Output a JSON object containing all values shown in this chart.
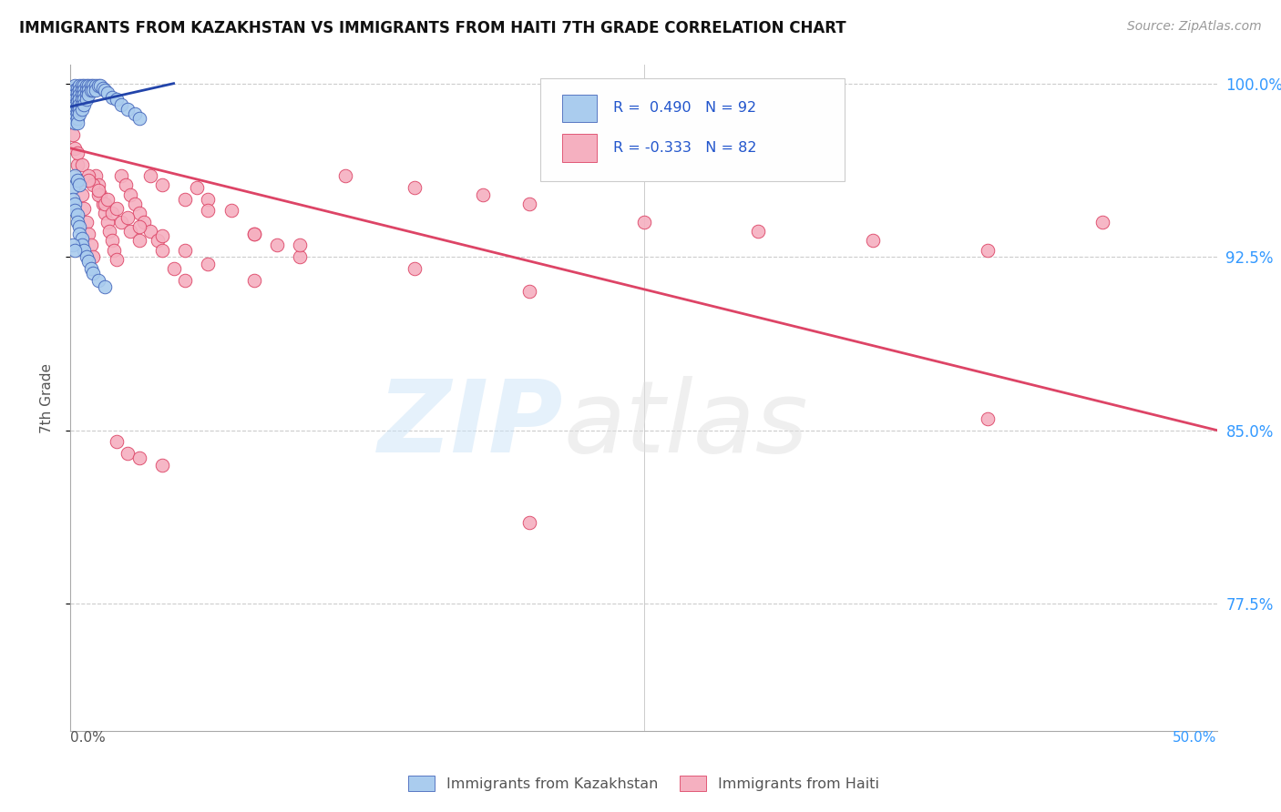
{
  "title": "IMMIGRANTS FROM KAZAKHSTAN VS IMMIGRANTS FROM HAITI 7TH GRADE CORRELATION CHART",
  "source": "Source: ZipAtlas.com",
  "ylabel": "7th Grade",
  "xlim": [
    0.0,
    0.5
  ],
  "ylim": [
    0.72,
    1.008
  ],
  "yticks": [
    0.775,
    0.85,
    0.925,
    1.0
  ],
  "ytick_labels": [
    "77.5%",
    "85.0%",
    "92.5%",
    "100.0%"
  ],
  "background_color": "#ffffff",
  "grid_color": "#cccccc",
  "kaz_color": "#aaccee",
  "haiti_color": "#f5b0c0",
  "kaz_edge_color": "#4466bb",
  "haiti_edge_color": "#dd4466",
  "kaz_line_color": "#2244aa",
  "haiti_line_color": "#dd4466",
  "legend_color": "#2255cc",
  "kaz_R": 0.49,
  "kaz_N": 92,
  "haiti_R": -0.333,
  "haiti_N": 82,
  "haiti_trend_x": [
    0.0,
    0.5
  ],
  "haiti_trend_y": [
    0.972,
    0.85
  ],
  "kaz_trend_x": [
    0.0,
    0.045
  ],
  "kaz_trend_y": [
    0.99,
    1.0
  ],
  "kaz_x": [
    0.001,
    0.001,
    0.001,
    0.001,
    0.001,
    0.001,
    0.001,
    0.001,
    0.001,
    0.002,
    0.002,
    0.002,
    0.002,
    0.002,
    0.002,
    0.002,
    0.002,
    0.002,
    0.002,
    0.003,
    0.003,
    0.003,
    0.003,
    0.003,
    0.003,
    0.003,
    0.003,
    0.003,
    0.004,
    0.004,
    0.004,
    0.004,
    0.004,
    0.004,
    0.004,
    0.005,
    0.005,
    0.005,
    0.005,
    0.005,
    0.005,
    0.006,
    0.006,
    0.006,
    0.006,
    0.006,
    0.007,
    0.007,
    0.007,
    0.007,
    0.008,
    0.008,
    0.008,
    0.009,
    0.009,
    0.01,
    0.01,
    0.011,
    0.011,
    0.012,
    0.013,
    0.014,
    0.015,
    0.016,
    0.018,
    0.02,
    0.022,
    0.025,
    0.028,
    0.03,
    0.001,
    0.001,
    0.002,
    0.002,
    0.003,
    0.003,
    0.004,
    0.004,
    0.005,
    0.005,
    0.006,
    0.007,
    0.008,
    0.009,
    0.01,
    0.012,
    0.015,
    0.002,
    0.003,
    0.004,
    0.001,
    0.002
  ],
  "kaz_y": [
    0.998,
    0.996,
    0.994,
    0.993,
    0.991,
    0.99,
    0.988,
    0.987,
    0.985,
    0.999,
    0.997,
    0.995,
    0.993,
    0.991,
    0.99,
    0.988,
    0.986,
    0.985,
    0.983,
    0.998,
    0.996,
    0.994,
    0.992,
    0.99,
    0.988,
    0.987,
    0.985,
    0.983,
    0.999,
    0.997,
    0.995,
    0.993,
    0.991,
    0.989,
    0.987,
    0.999,
    0.997,
    0.995,
    0.993,
    0.991,
    0.989,
    0.999,
    0.997,
    0.995,
    0.993,
    0.991,
    0.999,
    0.997,
    0.995,
    0.993,
    0.999,
    0.997,
    0.995,
    0.999,
    0.997,
    0.999,
    0.997,
    0.999,
    0.997,
    0.999,
    0.999,
    0.998,
    0.997,
    0.996,
    0.994,
    0.993,
    0.991,
    0.989,
    0.987,
    0.985,
    0.955,
    0.95,
    0.948,
    0.945,
    0.943,
    0.94,
    0.938,
    0.935,
    0.933,
    0.93,
    0.928,
    0.925,
    0.923,
    0.92,
    0.918,
    0.915,
    0.912,
    0.96,
    0.958,
    0.956,
    0.93,
    0.928
  ],
  "haiti_x": [
    0.001,
    0.002,
    0.003,
    0.004,
    0.005,
    0.006,
    0.007,
    0.008,
    0.009,
    0.01,
    0.011,
    0.012,
    0.013,
    0.014,
    0.015,
    0.016,
    0.017,
    0.018,
    0.019,
    0.02,
    0.022,
    0.024,
    0.026,
    0.028,
    0.03,
    0.032,
    0.035,
    0.038,
    0.04,
    0.045,
    0.05,
    0.055,
    0.06,
    0.07,
    0.08,
    0.09,
    0.1,
    0.12,
    0.15,
    0.18,
    0.2,
    0.25,
    0.3,
    0.35,
    0.4,
    0.45,
    0.003,
    0.005,
    0.008,
    0.01,
    0.012,
    0.015,
    0.018,
    0.022,
    0.026,
    0.03,
    0.035,
    0.04,
    0.05,
    0.06,
    0.08,
    0.1,
    0.15,
    0.2,
    0.008,
    0.012,
    0.016,
    0.02,
    0.025,
    0.03,
    0.04,
    0.05,
    0.06,
    0.08,
    0.02,
    0.025,
    0.03,
    0.04,
    0.2,
    0.4
  ],
  "haiti_y": [
    0.978,
    0.972,
    0.965,
    0.958,
    0.952,
    0.946,
    0.94,
    0.935,
    0.93,
    0.925,
    0.96,
    0.956,
    0.952,
    0.948,
    0.944,
    0.94,
    0.936,
    0.932,
    0.928,
    0.924,
    0.96,
    0.956,
    0.952,
    0.948,
    0.944,
    0.94,
    0.936,
    0.932,
    0.928,
    0.92,
    0.915,
    0.955,
    0.95,
    0.945,
    0.935,
    0.93,
    0.925,
    0.96,
    0.955,
    0.952,
    0.948,
    0.94,
    0.936,
    0.932,
    0.928,
    0.94,
    0.97,
    0.965,
    0.96,
    0.956,
    0.952,
    0.948,
    0.944,
    0.94,
    0.936,
    0.932,
    0.96,
    0.956,
    0.95,
    0.945,
    0.935,
    0.93,
    0.92,
    0.91,
    0.958,
    0.954,
    0.95,
    0.946,
    0.942,
    0.938,
    0.934,
    0.928,
    0.922,
    0.915,
    0.845,
    0.84,
    0.838,
    0.835,
    0.81,
    0.855
  ]
}
